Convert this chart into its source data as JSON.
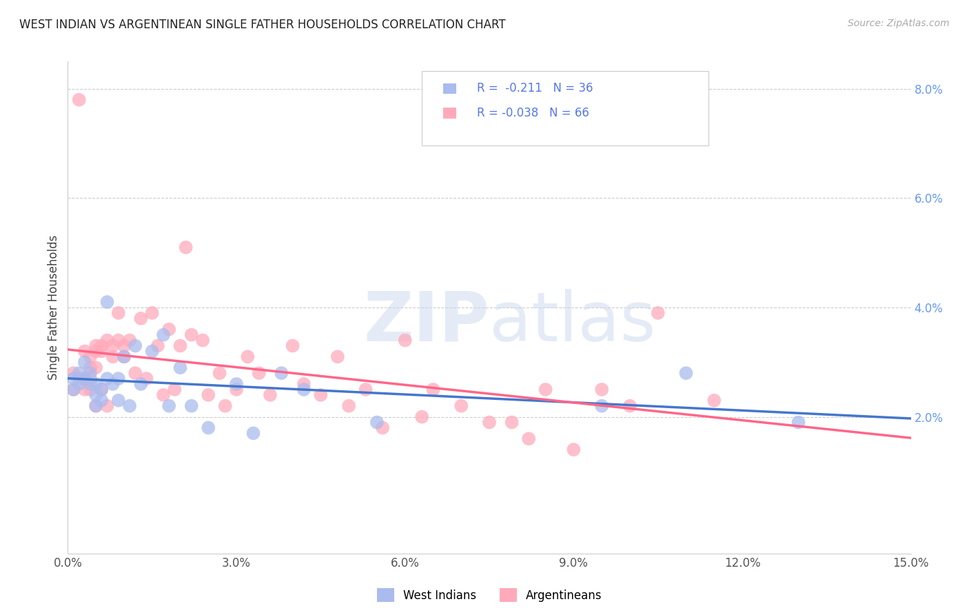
{
  "title": "WEST INDIAN VS ARGENTINEAN SINGLE FATHER HOUSEHOLDS CORRELATION CHART",
  "source": "Source: ZipAtlas.com",
  "ylabel": "Single Father Households",
  "xlim": [
    0.0,
    0.15
  ],
  "ylim": [
    -0.005,
    0.085
  ],
  "xticks": [
    0.0,
    0.03,
    0.06,
    0.09,
    0.12,
    0.15
  ],
  "yticks_right": [
    0.02,
    0.04,
    0.06,
    0.08
  ],
  "ytick_labels_right": [
    "2.0%",
    "4.0%",
    "6.0%",
    "8.0%"
  ],
  "xtick_labels": [
    "0.0%",
    "3.0%",
    "6.0%",
    "9.0%",
    "12.0%",
    "15.0%"
  ],
  "grid_color": "#cccccc",
  "background_color": "#ffffff",
  "blue_color": "#aabbee",
  "pink_color": "#ffaabb",
  "blue_line_color": "#4477cc",
  "pink_line_color": "#ff6688",
  "legend_label1": "West Indians",
  "legend_label2": "Argentineans",
  "legend_R1": "R =  -0.211",
  "legend_N1": "N = 36",
  "legend_R2": "R = -0.038",
  "legend_N2": "N = 66",
  "west_indian_x": [
    0.001,
    0.001,
    0.002,
    0.002,
    0.003,
    0.003,
    0.004,
    0.004,
    0.005,
    0.005,
    0.005,
    0.006,
    0.006,
    0.007,
    0.007,
    0.008,
    0.009,
    0.009,
    0.01,
    0.011,
    0.012,
    0.013,
    0.015,
    0.017,
    0.018,
    0.02,
    0.022,
    0.025,
    0.03,
    0.033,
    0.038,
    0.042,
    0.055,
    0.095,
    0.11,
    0.13
  ],
  "west_indian_y": [
    0.027,
    0.025,
    0.028,
    0.026,
    0.03,
    0.027,
    0.026,
    0.028,
    0.024,
    0.022,
    0.026,
    0.025,
    0.023,
    0.027,
    0.041,
    0.026,
    0.027,
    0.023,
    0.031,
    0.022,
    0.033,
    0.026,
    0.032,
    0.035,
    0.022,
    0.029,
    0.022,
    0.018,
    0.026,
    0.017,
    0.028,
    0.025,
    0.019,
    0.022,
    0.028,
    0.019
  ],
  "argentinean_x": [
    0.001,
    0.001,
    0.002,
    0.002,
    0.003,
    0.003,
    0.003,
    0.004,
    0.004,
    0.004,
    0.004,
    0.005,
    0.005,
    0.005,
    0.005,
    0.006,
    0.006,
    0.006,
    0.007,
    0.007,
    0.008,
    0.008,
    0.009,
    0.009,
    0.01,
    0.01,
    0.011,
    0.012,
    0.013,
    0.014,
    0.015,
    0.016,
    0.017,
    0.018,
    0.019,
    0.02,
    0.021,
    0.022,
    0.024,
    0.025,
    0.027,
    0.028,
    0.03,
    0.032,
    0.034,
    0.036,
    0.04,
    0.042,
    0.045,
    0.048,
    0.05,
    0.053,
    0.056,
    0.06,
    0.063,
    0.065,
    0.07,
    0.075,
    0.079,
    0.082,
    0.085,
    0.09,
    0.095,
    0.1,
    0.105,
    0.115
  ],
  "argentinean_y": [
    0.028,
    0.025,
    0.078,
    0.027,
    0.027,
    0.025,
    0.032,
    0.031,
    0.029,
    0.027,
    0.025,
    0.033,
    0.032,
    0.029,
    0.022,
    0.033,
    0.032,
    0.025,
    0.034,
    0.022,
    0.033,
    0.031,
    0.039,
    0.034,
    0.033,
    0.031,
    0.034,
    0.028,
    0.038,
    0.027,
    0.039,
    0.033,
    0.024,
    0.036,
    0.025,
    0.033,
    0.051,
    0.035,
    0.034,
    0.024,
    0.028,
    0.022,
    0.025,
    0.031,
    0.028,
    0.024,
    0.033,
    0.026,
    0.024,
    0.031,
    0.022,
    0.025,
    0.018,
    0.034,
    0.02,
    0.025,
    0.022,
    0.019,
    0.019,
    0.016,
    0.025,
    0.014,
    0.025,
    0.022,
    0.039,
    0.023
  ]
}
